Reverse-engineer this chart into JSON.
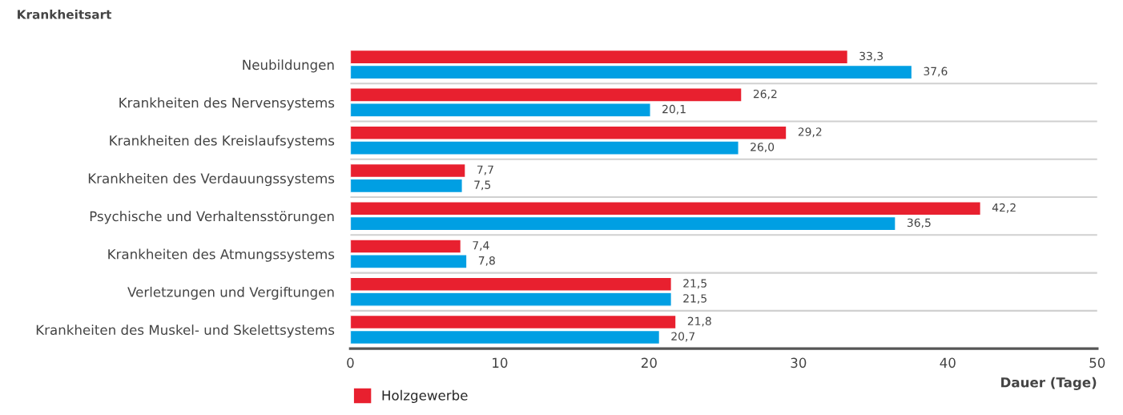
{
  "chart_data": {
    "type": "bar",
    "orientation": "horizontal",
    "ylabel": "Krankheitsart",
    "xlabel": "Dauer (Tage)",
    "categories": [
      "Neubildungen",
      "Krankheiten des Nervensystems",
      "Krankheiten des Kreislaufsystems",
      "Krankheiten des Verdauungssystems",
      "Psychische und Verhaltensstörungen",
      "Krankheiten des Atmungssystems",
      "Verletzungen und Vergiftungen",
      "Krankheiten des Muskel- und Skelettsystems"
    ],
    "series": [
      {
        "name": "Holzgewerbe",
        "color": "#e8202f",
        "values": [
          33.3,
          26.2,
          29.2,
          7.7,
          42.2,
          7.4,
          21.5,
          21.8
        ],
        "value_labels": [
          "33,3",
          "26,2",
          "29,2",
          "7,7",
          "42,2",
          "7,4",
          "21,5",
          "21,8"
        ]
      },
      {
        "color": "#009fe3",
        "values": [
          37.6,
          20.1,
          26.0,
          7.5,
          36.5,
          7.8,
          21.5,
          20.7
        ],
        "value_labels": [
          "37,6",
          "20,1",
          "26,0",
          "7,5",
          "36,5",
          "7,8",
          "21,5",
          "20,7"
        ]
      }
    ],
    "xlim": [
      0,
      50
    ],
    "xticks": [
      0,
      10,
      20,
      30,
      40,
      50
    ],
    "legend": "bottom left",
    "grid": false
  }
}
